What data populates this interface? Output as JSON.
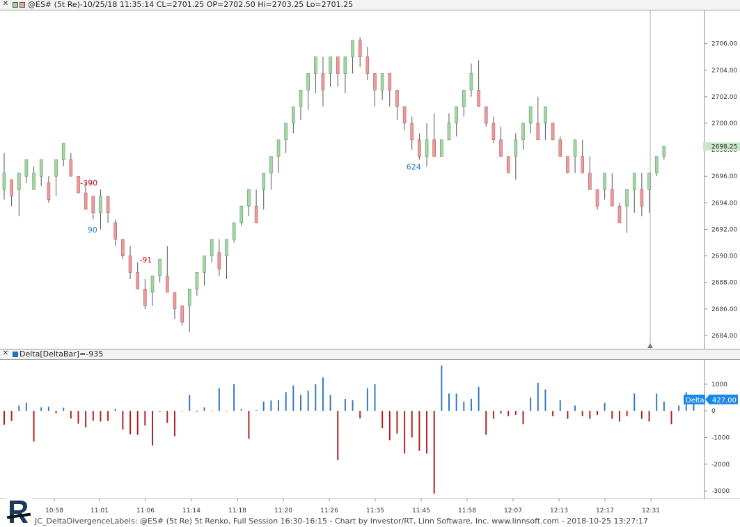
{
  "header": {
    "close_glyph": "✕",
    "title": "@ES# (5t Re)-10/25/18 11:35:14 CL=2701.25 OP=2702.50 Hi=2703.25 Lo=2701.25"
  },
  "lower_header": {
    "close_glyph": "✕",
    "title": "Delta[DeltaBar]=-935"
  },
  "price_axis": {
    "ticks": [
      "2706.00",
      "2704.00",
      "2702.00",
      "2700.00",
      "2698.00",
      "2696.00",
      "2694.00",
      "2692.00",
      "2690.00",
      "2688.00",
      "2686.00",
      "2684.00"
    ],
    "last_price": "2698.25",
    "last_price_color": "#c8e6c9"
  },
  "delta_axis": {
    "ticks": [
      "1000",
      "0",
      "-1000",
      "-2000",
      "-3000"
    ],
    "badge_label": "Delta",
    "badge_value": "427.00",
    "badge_color": "#1e88e5"
  },
  "time_axis": {
    "ticks": [
      "10:58",
      "11:01",
      "11:06",
      "11:14",
      "11:18",
      "11:20",
      "11:26",
      "11:35",
      "11:45",
      "11:58",
      "12:07",
      "12:13",
      "12:17",
      "12:31"
    ]
  },
  "labels": [
    {
      "text": "-390",
      "color": "#cc0000"
    },
    {
      "text": "90",
      "color": "#1e78c8"
    },
    {
      "text": "-91",
      "color": "#cc0000"
    },
    {
      "text": "624",
      "color": "#1e78c8"
    }
  ],
  "footer": {
    "text": "JC_DeltaDivergenceLabels: @ES# (5t Re) 5t Renko, Full Session 16:30-16:15 - Chart by Investor/RT, Linn Software, Inc. www.linnsoft.com - 2018-10-25 13:27:17"
  },
  "chart_data": [
    {
      "type": "candlestick",
      "title": "@ES# (5t Re)-10/25/18 11:35:14 CL=2701.25 OP=2702.50 Hi=2703.25 Lo=2701.25",
      "ylim": [
        2683,
        2708.5
      ],
      "up_color": "#a5d6a7",
      "down_color": "#ef9a9a",
      "bars": [
        {
          "o": 2695.0,
          "c": 2696.25,
          "h": 2697.75,
          "l": 2694.25
        },
        {
          "o": 2695.75,
          "c": 2694.5,
          "h": 2695.75,
          "l": 2693.75
        },
        {
          "o": 2695.0,
          "c": 2696.25,
          "h": 2696.25,
          "l": 2693.0
        },
        {
          "o": 2696.0,
          "c": 2697.25,
          "h": 2697.25,
          "l": 2695.5
        },
        {
          "o": 2695.0,
          "c": 2696.25,
          "h": 2696.75,
          "l": 2695.0
        },
        {
          "o": 2696.0,
          "c": 2697.25,
          "h": 2697.25,
          "l": 2695.25
        },
        {
          "o": 2695.5,
          "c": 2694.25,
          "h": 2696.0,
          "l": 2694.0
        },
        {
          "o": 2696.0,
          "c": 2697.25,
          "h": 2697.25,
          "l": 2694.5
        },
        {
          "o": 2697.25,
          "c": 2698.5,
          "h": 2698.5,
          "l": 2696.75
        },
        {
          "o": 2697.25,
          "c": 2696.0,
          "h": 2697.75,
          "l": 2696.0
        },
        {
          "o": 2696.0,
          "c": 2694.75,
          "h": 2696.0,
          "l": 2694.75
        },
        {
          "o": 2694.75,
          "c": 2693.5,
          "h": 2695.5,
          "l": 2693.5
        },
        {
          "o": 2694.5,
          "c": 2693.25,
          "h": 2694.5,
          "l": 2692.75
        },
        {
          "o": 2693.25,
          "c": 2694.5,
          "h": 2695.0,
          "l": 2692.0
        },
        {
          "o": 2694.5,
          "c": 2693.25,
          "h": 2694.5,
          "l": 2692.5
        },
        {
          "o": 2692.5,
          "c": 2691.25,
          "h": 2692.75,
          "l": 2690.75
        },
        {
          "o": 2691.25,
          "c": 2690.0,
          "h": 2691.25,
          "l": 2689.75
        },
        {
          "o": 2690.0,
          "c": 2688.75,
          "h": 2690.75,
          "l": 2688.25
        },
        {
          "o": 2688.75,
          "c": 2687.5,
          "h": 2689.5,
          "l": 2687.5
        },
        {
          "o": 2687.5,
          "c": 2686.25,
          "h": 2688.25,
          "l": 2686.0
        },
        {
          "o": 2687.25,
          "c": 2688.5,
          "h": 2688.5,
          "l": 2686.25
        },
        {
          "o": 2688.5,
          "c": 2689.75,
          "h": 2689.75,
          "l": 2688.0
        },
        {
          "o": 2688.5,
          "c": 2687.25,
          "h": 2690.75,
          "l": 2687.25
        },
        {
          "o": 2687.25,
          "c": 2686.0,
          "h": 2687.25,
          "l": 2685.25
        },
        {
          "o": 2686.25,
          "c": 2685.0,
          "h": 2686.25,
          "l": 2684.75
        },
        {
          "o": 2686.25,
          "c": 2687.5,
          "h": 2687.5,
          "l": 2684.25
        },
        {
          "o": 2687.5,
          "c": 2688.75,
          "h": 2688.75,
          "l": 2687.0
        },
        {
          "o": 2688.75,
          "c": 2690.0,
          "h": 2690.0,
          "l": 2687.75
        },
        {
          "o": 2690.0,
          "c": 2691.25,
          "h": 2691.25,
          "l": 2689.5
        },
        {
          "o": 2690.25,
          "c": 2689.0,
          "h": 2691.25,
          "l": 2688.5
        },
        {
          "o": 2690.0,
          "c": 2691.25,
          "h": 2691.25,
          "l": 2688.25
        },
        {
          "o": 2691.25,
          "c": 2692.5,
          "h": 2692.5,
          "l": 2691.0
        },
        {
          "o": 2692.5,
          "c": 2693.75,
          "h": 2693.75,
          "l": 2692.25
        },
        {
          "o": 2693.75,
          "c": 2695.0,
          "h": 2695.0,
          "l": 2693.0
        },
        {
          "o": 2693.75,
          "c": 2692.5,
          "h": 2695.0,
          "l": 2692.5
        },
        {
          "o": 2695.0,
          "c": 2696.25,
          "h": 2696.25,
          "l": 2693.5
        },
        {
          "o": 2696.25,
          "c": 2697.5,
          "h": 2697.5,
          "l": 2695.0
        },
        {
          "o": 2697.5,
          "c": 2698.75,
          "h": 2698.75,
          "l": 2696.25
        },
        {
          "o": 2698.75,
          "c": 2700.0,
          "h": 2700.0,
          "l": 2697.75
        },
        {
          "o": 2700.0,
          "c": 2701.25,
          "h": 2701.25,
          "l": 2699.25
        },
        {
          "o": 2701.25,
          "c": 2702.5,
          "h": 2702.5,
          "l": 2700.25
        },
        {
          "o": 2702.5,
          "c": 2703.75,
          "h": 2703.75,
          "l": 2701.0
        },
        {
          "o": 2703.75,
          "c": 2705.0,
          "h": 2705.0,
          "l": 2702.25
        },
        {
          "o": 2703.75,
          "c": 2702.5,
          "h": 2705.0,
          "l": 2701.25
        },
        {
          "o": 2703.75,
          "c": 2705.0,
          "h": 2705.0,
          "l": 2702.75
        },
        {
          "o": 2705.0,
          "c": 2703.75,
          "h": 2705.0,
          "l": 2702.75
        },
        {
          "o": 2703.75,
          "c": 2705.0,
          "h": 2705.0,
          "l": 2702.25
        },
        {
          "o": 2705.0,
          "c": 2706.25,
          "h": 2706.25,
          "l": 2703.75
        },
        {
          "o": 2706.25,
          "c": 2705.0,
          "h": 2706.5,
          "l": 2704.25
        },
        {
          "o": 2705.0,
          "c": 2703.75,
          "h": 2705.75,
          "l": 2703.25
        },
        {
          "o": 2703.75,
          "c": 2702.5,
          "h": 2703.75,
          "l": 2701.25
        },
        {
          "o": 2702.5,
          "c": 2703.75,
          "h": 2703.75,
          "l": 2701.75
        },
        {
          "o": 2703.75,
          "c": 2702.5,
          "h": 2703.75,
          "l": 2701.25
        },
        {
          "o": 2702.5,
          "c": 2701.25,
          "h": 2702.5,
          "l": 2700.25
        },
        {
          "o": 2701.25,
          "c": 2700.0,
          "h": 2701.25,
          "l": 2699.5
        },
        {
          "o": 2700.0,
          "c": 2698.75,
          "h": 2700.5,
          "l": 2698.0
        },
        {
          "o": 2698.75,
          "c": 2697.5,
          "h": 2699.25,
          "l": 2697.25
        },
        {
          "o": 2697.5,
          "c": 2698.75,
          "h": 2700.0,
          "l": 2696.75
        },
        {
          "o": 2698.75,
          "c": 2697.5,
          "h": 2700.75,
          "l": 2697.5
        },
        {
          "o": 2697.5,
          "c": 2698.75,
          "h": 2698.75,
          "l": 2697.5
        },
        {
          "o": 2698.75,
          "c": 2700.0,
          "h": 2700.75,
          "l": 2698.75
        },
        {
          "o": 2700.0,
          "c": 2701.25,
          "h": 2701.25,
          "l": 2699.0
        },
        {
          "o": 2701.25,
          "c": 2702.5,
          "h": 2702.5,
          "l": 2700.5
        },
        {
          "o": 2702.5,
          "c": 2703.75,
          "h": 2704.5,
          "l": 2702.0
        },
        {
          "o": 2702.5,
          "c": 2701.25,
          "h": 2704.75,
          "l": 2701.25
        },
        {
          "o": 2701.25,
          "c": 2700.0,
          "h": 2701.25,
          "l": 2699.75
        },
        {
          "o": 2700.0,
          "c": 2698.75,
          "h": 2700.5,
          "l": 2698.5
        },
        {
          "o": 2698.75,
          "c": 2697.5,
          "h": 2699.75,
          "l": 2697.5
        },
        {
          "o": 2697.5,
          "c": 2696.25,
          "h": 2697.5,
          "l": 2696.25
        },
        {
          "o": 2697.5,
          "c": 2698.75,
          "h": 2699.25,
          "l": 2695.75
        },
        {
          "o": 2698.75,
          "c": 2700.0,
          "h": 2700.0,
          "l": 2698.0
        },
        {
          "o": 2700.0,
          "c": 2701.25,
          "h": 2701.25,
          "l": 2699.25
        },
        {
          "o": 2700.0,
          "c": 2698.75,
          "h": 2702.0,
          "l": 2698.75
        },
        {
          "o": 2700.0,
          "c": 2701.25,
          "h": 2701.25,
          "l": 2698.75
        },
        {
          "o": 2700.0,
          "c": 2698.75,
          "h": 2700.0,
          "l": 2698.75
        },
        {
          "o": 2698.75,
          "c": 2697.5,
          "h": 2699.0,
          "l": 2697.5
        },
        {
          "o": 2697.5,
          "c": 2696.25,
          "h": 2697.5,
          "l": 2696.25
        },
        {
          "o": 2697.5,
          "c": 2698.75,
          "h": 2698.75,
          "l": 2696.25
        },
        {
          "o": 2697.5,
          "c": 2696.25,
          "h": 2698.75,
          "l": 2696.25
        },
        {
          "o": 2696.25,
          "c": 2695.0,
          "h": 2697.5,
          "l": 2695.0
        },
        {
          "o": 2695.0,
          "c": 2693.75,
          "h": 2695.0,
          "l": 2693.5
        },
        {
          "o": 2695.0,
          "c": 2696.25,
          "h": 2696.25,
          "l": 2694.25
        },
        {
          "o": 2695.0,
          "c": 2693.75,
          "h": 2696.25,
          "l": 2693.75
        },
        {
          "o": 2693.75,
          "c": 2692.5,
          "h": 2694.0,
          "l": 2692.5
        },
        {
          "o": 2693.75,
          "c": 2695.0,
          "h": 2695.0,
          "l": 2691.75
        },
        {
          "o": 2695.0,
          "c": 2696.25,
          "h": 2696.25,
          "l": 2693.25
        },
        {
          "o": 2695.0,
          "c": 2693.75,
          "h": 2696.25,
          "l": 2693.0
        },
        {
          "o": 2695.0,
          "c": 2696.25,
          "h": 2696.25,
          "l": 2693.25
        },
        {
          "o": 2696.25,
          "c": 2697.5,
          "h": 2697.5,
          "l": 2696.0
        },
        {
          "o": 2697.5,
          "c": 2698.25,
          "h": 2698.25,
          "l": 2697.25
        }
      ]
    },
    {
      "type": "bar",
      "title": "Delta[DeltaBar]=-935",
      "ylim": [
        -3100,
        1700
      ],
      "pos_color": "#3478c0",
      "neg_color": "#b22222",
      "values": [
        -520,
        -380,
        200,
        300,
        -1150,
        130,
        150,
        -90,
        120,
        -290,
        -480,
        -620,
        -370,
        -400,
        -380,
        80,
        -700,
        -880,
        -900,
        -550,
        -1300,
        -30,
        -450,
        -950,
        -20,
        600,
        -30,
        130,
        -20,
        850,
        -20,
        1000,
        60,
        -1050,
        20,
        350,
        390,
        400,
        700,
        950,
        600,
        750,
        1000,
        1250,
        600,
        -1850,
        450,
        400,
        -280,
        850,
        1000,
        -650,
        -1100,
        -850,
        -1600,
        -1000,
        -1500,
        -1600,
        -3100,
        1700,
        650,
        650,
        350,
        450,
        900,
        -900,
        -300,
        -100,
        -200,
        -150,
        -500,
        500,
        1050,
        800,
        -200,
        400,
        -300,
        200,
        -200,
        -300,
        -150,
        300,
        -300,
        -400,
        -200,
        650,
        -300,
        -400,
        650,
        350,
        -500,
        200,
        700,
        420
      ]
    }
  ]
}
